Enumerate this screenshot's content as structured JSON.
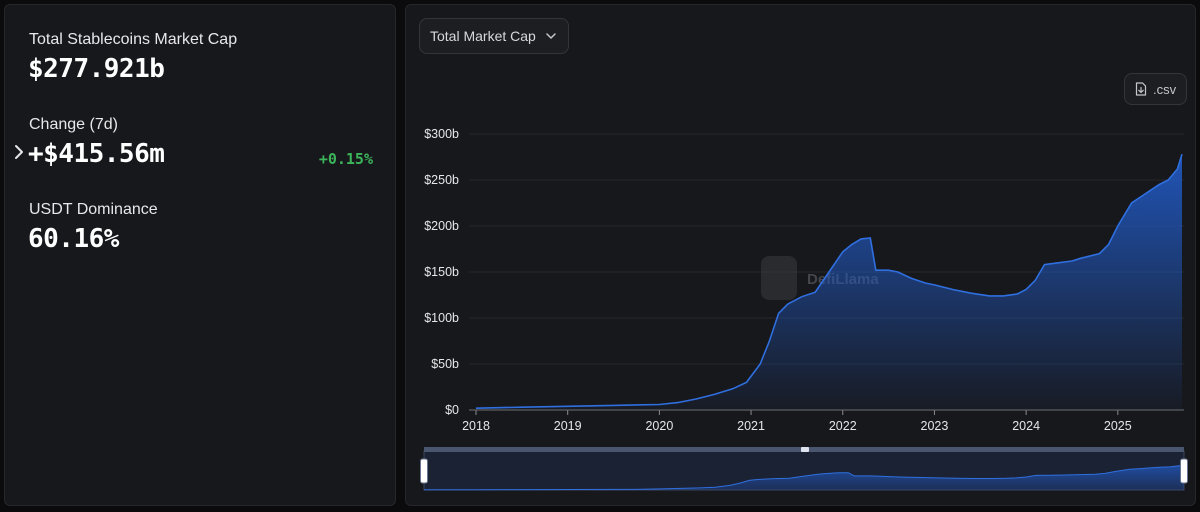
{
  "stats": {
    "market_cap_label": "Total Stablecoins Market Cap",
    "market_cap_value": "$277.921b",
    "change_label": "Change (7d)",
    "change_value": "+$415.56m",
    "change_pct": "+0.15%",
    "dominance_label": "USDT Dominance",
    "dominance_value": "60.16%"
  },
  "controls": {
    "metric_select": "Total Market Cap",
    "csv_button": ".csv"
  },
  "watermark": "DefiLlama",
  "colors": {
    "line": "#2f6fe0",
    "fill": "#1e4fa8",
    "positive": "#3cb55a"
  },
  "chart_data": {
    "type": "area",
    "title": "",
    "xlabel": "",
    "ylabel": "",
    "x_ticks": [
      "2018",
      "2019",
      "2020",
      "2021",
      "2022",
      "2023",
      "2024",
      "2025"
    ],
    "y_ticks": [
      "$0",
      "$50b",
      "$100b",
      "$150b",
      "$200b",
      "$250b",
      "$300b"
    ],
    "ylim": [
      0,
      300
    ],
    "xlim": [
      2018,
      2025.7
    ],
    "grid": true,
    "series": [
      {
        "name": "Total Market Cap",
        "x": [
          2018.0,
          2018.5,
          2019.0,
          2019.5,
          2020.0,
          2020.2,
          2020.4,
          2020.6,
          2020.8,
          2020.95,
          2021.1,
          2021.2,
          2021.3,
          2021.4,
          2021.55,
          2021.7,
          2021.85,
          2022.0,
          2022.1,
          2022.2,
          2022.3,
          2022.36,
          2022.4,
          2022.5,
          2022.6,
          2022.75,
          2022.9,
          2023.0,
          2023.2,
          2023.4,
          2023.6,
          2023.75,
          2023.9,
          2024.0,
          2024.1,
          2024.2,
          2024.35,
          2024.5,
          2024.6,
          2024.8,
          2024.9,
          2025.0,
          2025.15,
          2025.3,
          2025.45,
          2025.55,
          2025.65,
          2025.7
        ],
        "values": [
          2,
          3,
          4,
          5,
          6,
          8,
          12,
          17,
          23,
          30,
          50,
          75,
          105,
          115,
          123,
          128,
          150,
          172,
          180,
          186,
          187,
          152,
          152,
          152,
          150,
          143,
          138,
          136,
          131,
          127,
          124,
          124,
          126,
          131,
          141,
          158,
          160,
          162,
          165,
          170,
          180,
          200,
          225,
          235,
          245,
          250,
          262,
          278
        ]
      }
    ]
  }
}
